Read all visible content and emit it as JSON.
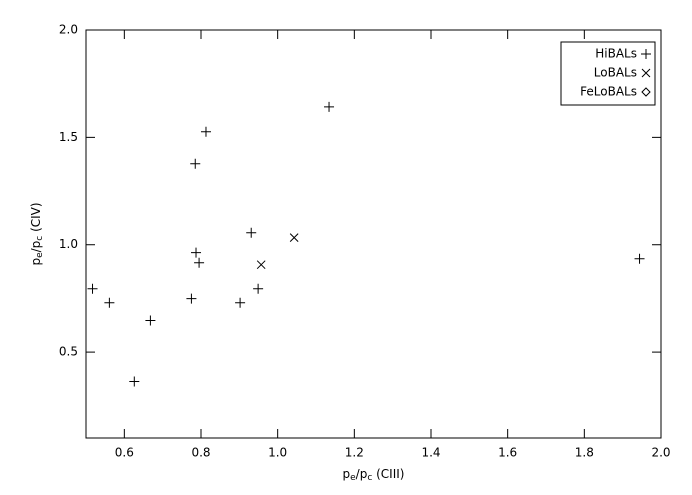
{
  "chart_data": {
    "type": "scatter",
    "x_label": [
      "p",
      "e",
      "/p",
      "c",
      " (CIII)"
    ],
    "y_label": [
      "p",
      "e",
      "/p",
      "c",
      " (CIV)"
    ],
    "xlim": [
      0.5,
      2.0
    ],
    "ylim": [
      0.1,
      2.0
    ],
    "xticks": [
      0.6,
      0.8,
      {
        "value": 1.0,
        "label": "1.0"
      },
      1.2,
      1.4,
      1.6,
      1.8,
      {
        "value": 2.0,
        "label": "2.0"
      }
    ],
    "yticks": [
      0.5,
      {
        "value": 1.0,
        "label": "1.0"
      },
      1.5,
      {
        "value": 2.0,
        "label": "2.0"
      }
    ],
    "legend": "top-right",
    "series": [
      {
        "name": "HiBALs",
        "marker": "plus",
        "color": "#000000",
        "x": [
          0.517,
          0.561,
          0.668,
          0.626,
          0.775,
          0.787,
          0.795,
          0.785,
          0.813,
          0.902,
          0.931,
          0.949,
          1.134,
          1.944
        ],
        "values": [
          0.795,
          0.73,
          0.647,
          0.363,
          0.749,
          0.963,
          0.916,
          1.377,
          1.526,
          0.73,
          1.056,
          0.795,
          1.642,
          0.935
        ]
      },
      {
        "name": "LoBALs",
        "marker": "cross",
        "color": "#000000",
        "x": [
          0.957,
          1.043
        ],
        "values": [
          0.907,
          1.033
        ]
      },
      {
        "name": "FeLoBALs",
        "marker": "diamond",
        "color": "#000000",
        "x": [],
        "values": []
      }
    ]
  }
}
